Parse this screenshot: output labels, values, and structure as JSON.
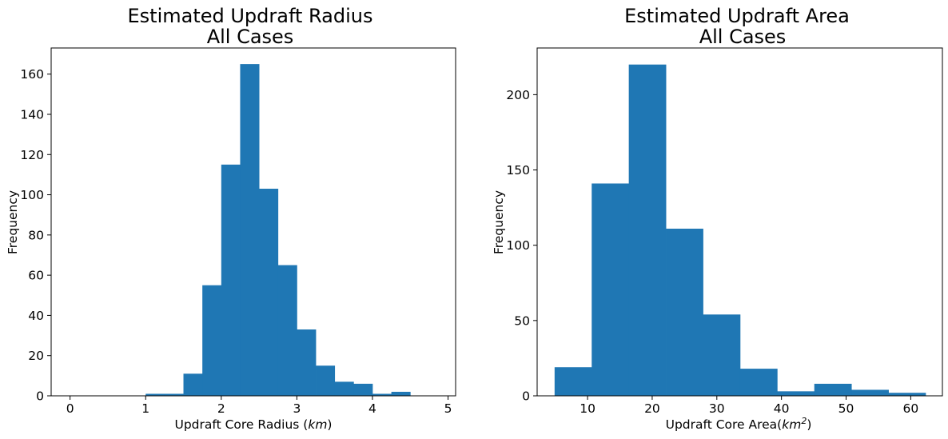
{
  "chart_data": [
    {
      "type": "bar",
      "title_line1": "Estimated Updraft Radius",
      "title_line2": "All Cases",
      "xlabel": "Updraft Core Radius (",
      "xlabel_unit": "km",
      "xlabel_tail": ")",
      "ylabel": "Frequency",
      "xlim": [
        -0.25,
        5.1
      ],
      "ylim": [
        0,
        173
      ],
      "xticks": [
        0,
        1,
        2,
        3,
        4,
        5
      ],
      "yticks": [
        0,
        20,
        40,
        60,
        80,
        100,
        120,
        140,
        160
      ],
      "bin_edges": [
        1.0,
        1.25,
        1.5,
        1.75,
        2.0,
        2.25,
        2.5,
        2.75,
        3.0,
        3.25,
        3.5,
        3.75,
        4.0,
        4.25,
        4.5
      ],
      "values": [
        1,
        1,
        11,
        55,
        115,
        165,
        103,
        65,
        33,
        15,
        7,
        6,
        1,
        2
      ],
      "color": "#1f77b4"
    },
    {
      "type": "bar",
      "title_line1": "Estimated Updraft Area",
      "title_line2": "All Cases",
      "xlabel": "Updraft Core Area(",
      "xlabel_unit": "km",
      "xlabel_sup": "2",
      "xlabel_tail": ")",
      "ylabel": "Frequency",
      "xlim": [
        2.2,
        64.9
      ],
      "ylim": [
        0,
        231
      ],
      "xticks": [
        10,
        20,
        30,
        40,
        50,
        60
      ],
      "yticks": [
        0,
        50,
        100,
        150,
        200
      ],
      "bin_edges": [
        4.9,
        10.64,
        16.38,
        22.12,
        27.86,
        33.6,
        39.34,
        45.08,
        50.82,
        56.56,
        62.3
      ],
      "values": [
        19,
        141,
        220,
        111,
        54,
        18,
        3,
        8,
        4,
        2
      ],
      "color": "#1f77b4"
    }
  ]
}
